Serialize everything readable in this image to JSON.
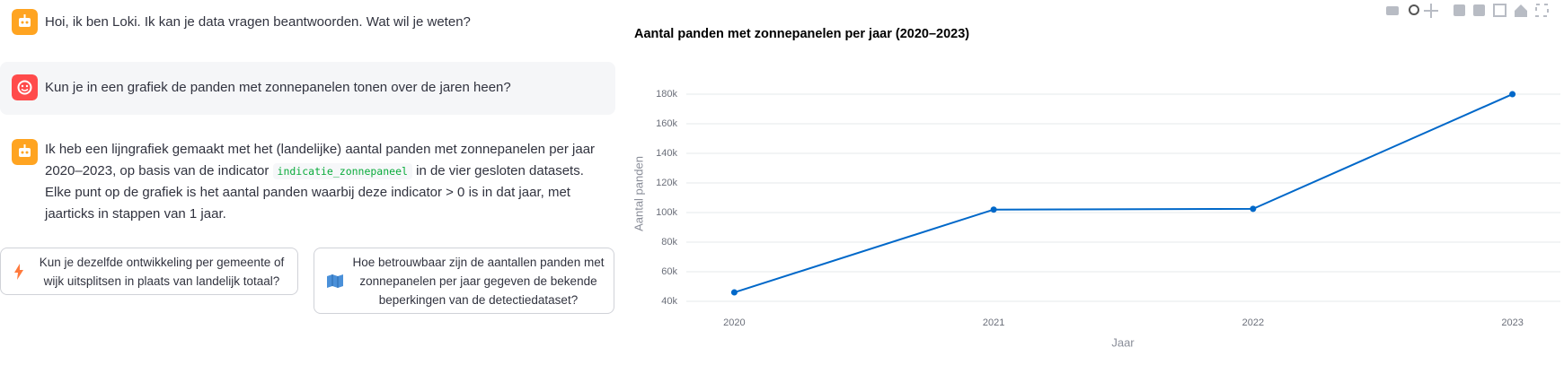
{
  "chat": {
    "messages": [
      {
        "role": "assistant",
        "text": "Hoi, ik ben Loki. Ik kan je data vragen beantwoorden. Wat wil je weten?"
      },
      {
        "role": "user",
        "text": "Kun je in een grafiek de panden met zonnepanelen tonen over de jaren heen?"
      },
      {
        "role": "assistant",
        "text_before": "Ik heb een lijngrafiek gemaakt met het (landelijke) aantal panden met zonnepanelen per jaar 2020–2023, op basis van de indicator ",
        "code": "indicatie_zonnepaneel",
        "text_after": " in de vier gesloten datasets. Elke punt op de grafiek is het aantal panden waarbij deze indicator > 0 is in dat jaar, met jaarticks in stappen van 1 jaar."
      }
    ],
    "suggestions": [
      "Kun je dezelfde ontwikkeling per gemeente of wijk uitsplitsen in plaats van landelijk totaal?",
      "Hoe betrouwbaar zijn de aantallen panden met zonnepanelen per jaar gegeven de bekende beperkingen van de detectiedataset?"
    ]
  },
  "chart_data": {
    "type": "line",
    "title": "Aantal panden met zonnepanelen per jaar (2020–2023)",
    "x_label": "Jaar",
    "y_label": "Aantal panden",
    "x": [
      2020,
      2021,
      2022,
      2023
    ],
    "values": [
      46000,
      102000,
      102500,
      180000
    ],
    "color": "#0068c9",
    "xlim": [
      2019.815,
      2023.185
    ],
    "xticks": [
      2020,
      2021,
      2022,
      2023
    ],
    "ylim": [
      39000,
      187000
    ],
    "yticks": [
      {
        "value": 40000,
        "label": "40k"
      },
      {
        "value": 60000,
        "label": "60k"
      },
      {
        "value": 80000,
        "label": "80k"
      },
      {
        "value": 100000,
        "label": "100k"
      },
      {
        "value": 120000,
        "label": "120k"
      },
      {
        "value": 140000,
        "label": "140k"
      },
      {
        "value": 160000,
        "label": "160k"
      },
      {
        "value": 180000,
        "label": "180k"
      }
    ],
    "grid": true
  }
}
